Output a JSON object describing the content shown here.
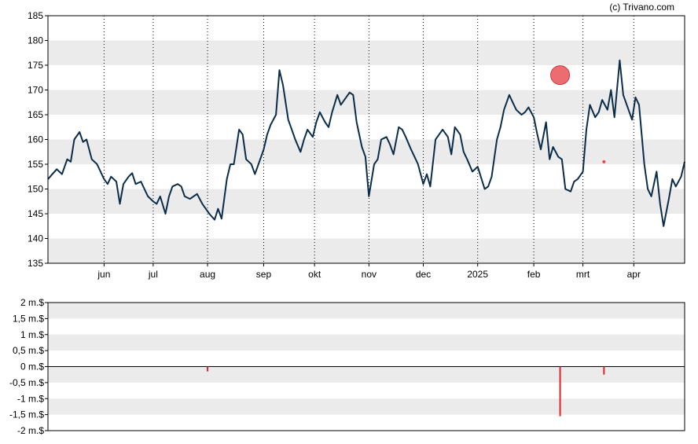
{
  "credit": "(c) Trivano.com",
  "colors": {
    "price_line": "#0b2d4a",
    "band": "#ebebeb",
    "background": "#ffffff",
    "marker": "#e8474f",
    "volume_bar": "#e0242b",
    "frame": "#000000"
  },
  "chart_data": [
    {
      "type": "line",
      "title": "",
      "y_ticks": [
        "185",
        "180",
        "175",
        "170",
        "165",
        "160",
        "155",
        "150",
        "145",
        "140",
        "135"
      ],
      "ylim": [
        135,
        185
      ],
      "x_ticks": [
        "jun",
        "jul",
        "aug",
        "sep",
        "okt",
        "nov",
        "dec",
        "2025",
        "feb",
        "mrt",
        "apr"
      ],
      "x_tick_dates": [
        "2024-06-03",
        "2024-07-01",
        "2024-08-01",
        "2024-09-02",
        "2024-10-01",
        "2024-11-01",
        "2024-12-02",
        "2025-01-02",
        "2025-02-03",
        "2025-03-03",
        "2025-04-01"
      ],
      "xlim": [
        "2024-05-02",
        "2025-04-30"
      ],
      "grid": "vertical dotted lines at month ticks, alternating horizontal bands",
      "series": [
        {
          "values": [
            [
              "2024-05-02",
              152.0
            ],
            [
              "2024-05-07",
              154.0
            ],
            [
              "2024-05-10",
              153.0
            ],
            [
              "2024-05-13",
              156.0
            ],
            [
              "2024-05-15",
              155.5
            ],
            [
              "2024-05-17",
              160.0
            ],
            [
              "2024-05-20",
              161.5
            ],
            [
              "2024-05-22",
              159.5
            ],
            [
              "2024-05-24",
              160.0
            ],
            [
              "2024-05-27",
              156.0
            ],
            [
              "2024-05-30",
              155.0
            ],
            [
              "2024-06-03",
              152.0
            ],
            [
              "2024-06-05",
              151.0
            ],
            [
              "2024-06-07",
              152.5
            ],
            [
              "2024-06-10",
              151.5
            ],
            [
              "2024-06-12",
              147.0
            ],
            [
              "2024-06-14",
              151.0
            ],
            [
              "2024-06-17",
              152.5
            ],
            [
              "2024-06-19",
              153.2
            ],
            [
              "2024-06-21",
              151.0
            ],
            [
              "2024-06-24",
              151.5
            ],
            [
              "2024-06-26",
              150.0
            ],
            [
              "2024-06-28",
              148.5
            ],
            [
              "2024-07-01",
              147.5
            ],
            [
              "2024-07-03",
              147.0
            ],
            [
              "2024-07-05",
              148.5
            ],
            [
              "2024-07-08",
              145.0
            ],
            [
              "2024-07-10",
              148.5
            ],
            [
              "2024-07-12",
              150.5
            ],
            [
              "2024-07-15",
              151.0
            ],
            [
              "2024-07-17",
              150.5
            ],
            [
              "2024-07-19",
              148.5
            ],
            [
              "2024-07-22",
              148.0
            ],
            [
              "2024-07-24",
              148.5
            ],
            [
              "2024-07-26",
              149.0
            ],
            [
              "2024-07-29",
              147.0
            ],
            [
              "2024-07-31",
              146.0
            ],
            [
              "2024-08-02",
              145.0
            ],
            [
              "2024-08-05",
              143.8
            ],
            [
              "2024-08-07",
              146.0
            ],
            [
              "2024-08-08",
              145.0
            ],
            [
              "2024-08-09",
              144.0
            ],
            [
              "2024-08-12",
              152.0
            ],
            [
              "2024-08-14",
              155.0
            ],
            [
              "2024-08-16",
              155.0
            ],
            [
              "2024-08-19",
              162.0
            ],
            [
              "2024-08-21",
              161.0
            ],
            [
              "2024-08-23",
              156.0
            ],
            [
              "2024-08-26",
              155.0
            ],
            [
              "2024-08-28",
              153.0
            ],
            [
              "2024-08-30",
              155.0
            ],
            [
              "2024-09-02",
              158.0
            ],
            [
              "2024-09-04",
              161.0
            ],
            [
              "2024-09-06",
              163.0
            ],
            [
              "2024-09-09",
              165.0
            ],
            [
              "2024-09-11",
              174.0
            ],
            [
              "2024-09-13",
              171.0
            ],
            [
              "2024-09-16",
              164.0
            ],
            [
              "2024-09-18",
              162.0
            ],
            [
              "2024-09-20",
              160.0
            ],
            [
              "2024-09-23",
              157.5
            ],
            [
              "2024-09-25",
              160.0
            ],
            [
              "2024-09-27",
              162.0
            ],
            [
              "2024-09-30",
              160.5
            ],
            [
              "2024-10-02",
              163.5
            ],
            [
              "2024-10-04",
              165.5
            ],
            [
              "2024-10-07",
              163.5
            ],
            [
              "2024-10-09",
              162.5
            ],
            [
              "2024-10-11",
              165.5
            ],
            [
              "2024-10-14",
              169.0
            ],
            [
              "2024-10-16",
              167.0
            ],
            [
              "2024-10-18",
              168.0
            ],
            [
              "2024-10-21",
              169.5
            ],
            [
              "2024-10-23",
              169.0
            ],
            [
              "2024-10-25",
              163.5
            ],
            [
              "2024-10-28",
              158.5
            ],
            [
              "2024-10-30",
              156.5
            ],
            [
              "2024-11-01",
              148.5
            ],
            [
              "2024-11-04",
              155.0
            ],
            [
              "2024-11-06",
              156.0
            ],
            [
              "2024-11-08",
              160.0
            ],
            [
              "2024-11-11",
              160.5
            ],
            [
              "2024-11-13",
              159.0
            ],
            [
              "2024-11-15",
              157.0
            ],
            [
              "2024-11-18",
              162.5
            ],
            [
              "2024-11-20",
              162.0
            ],
            [
              "2024-11-22",
              160.5
            ],
            [
              "2024-11-25",
              158.0
            ],
            [
              "2024-11-27",
              156.5
            ],
            [
              "2024-11-29",
              155.0
            ],
            [
              "2024-12-02",
              151.0
            ],
            [
              "2024-12-04",
              153.0
            ],
            [
              "2024-12-06",
              150.5
            ],
            [
              "2024-12-09",
              160.0
            ],
            [
              "2024-12-11",
              161.0
            ],
            [
              "2024-12-13",
              162.0
            ],
            [
              "2024-12-16",
              160.5
            ],
            [
              "2024-12-18",
              157.0
            ],
            [
              "2024-12-20",
              162.5
            ],
            [
              "2024-12-23",
              161.0
            ],
            [
              "2024-12-25",
              157.5
            ],
            [
              "2024-12-27",
              156.0
            ],
            [
              "2024-12-30",
              153.5
            ],
            [
              "2025-01-02",
              154.5
            ],
            [
              "2025-01-06",
              150.0
            ],
            [
              "2025-01-08",
              150.5
            ],
            [
              "2025-01-10",
              152.5
            ],
            [
              "2025-01-13",
              160.0
            ],
            [
              "2025-01-15",
              162.5
            ],
            [
              "2025-01-17",
              166.0
            ],
            [
              "2025-01-20",
              169.0
            ],
            [
              "2025-01-22",
              167.5
            ],
            [
              "2025-01-24",
              166.0
            ],
            [
              "2025-01-27",
              165.0
            ],
            [
              "2025-01-29",
              165.5
            ],
            [
              "2025-01-31",
              166.5
            ],
            [
              "2025-02-03",
              164.5
            ],
            [
              "2025-02-05",
              161.0
            ],
            [
              "2025-02-07",
              158.0
            ],
            [
              "2025-02-10",
              163.5
            ],
            [
              "2025-02-12",
              156.0
            ],
            [
              "2025-02-14",
              158.5
            ],
            [
              "2025-02-17",
              156.5
            ],
            [
              "2025-02-19",
              156.0
            ],
            [
              "2025-02-21",
              150.0
            ],
            [
              "2025-02-24",
              149.5
            ],
            [
              "2025-02-26",
              151.5
            ],
            [
              "2025-02-28",
              152.0
            ],
            [
              "2025-03-03",
              153.5
            ],
            [
              "2025-03-05",
              162.0
            ],
            [
              "2025-03-07",
              167.0
            ],
            [
              "2025-03-10",
              164.5
            ],
            [
              "2025-03-12",
              165.5
            ],
            [
              "2025-03-14",
              168.0
            ],
            [
              "2025-03-17",
              166.0
            ],
            [
              "2025-03-19",
              170.0
            ],
            [
              "2025-03-21",
              164.5
            ],
            [
              "2025-03-24",
              176.0
            ],
            [
              "2025-03-26",
              169.0
            ],
            [
              "2025-03-28",
              167.0
            ],
            [
              "2025-03-31",
              164.0
            ],
            [
              "2025-04-02",
              168.5
            ],
            [
              "2025-04-04",
              167.0
            ],
            [
              "2025-04-07",
              155.0
            ],
            [
              "2025-04-09",
              150.0
            ],
            [
              "2025-04-11",
              148.5
            ],
            [
              "2025-04-14",
              153.5
            ],
            [
              "2025-04-16",
              147.0
            ],
            [
              "2025-04-18",
              142.5
            ],
            [
              "2025-04-21",
              148.0
            ],
            [
              "2025-04-23",
              152.0
            ],
            [
              "2025-04-25",
              150.5
            ],
            [
              "2025-04-28",
              152.5
            ],
            [
              "2025-04-30",
              155.5
            ]
          ]
        }
      ],
      "marker": {
        "date": "2025-02-18",
        "value": 173.0
      },
      "small_marker": {
        "date": "2025-03-15",
        "value": 155.5
      }
    },
    {
      "type": "bar",
      "title": "",
      "y_ticks": [
        "2 m.$",
        "1,5 m.$",
        "1 m.$",
        "0,5 m.$",
        "0 m.$",
        "-0,5 m.$",
        "-1 m.$",
        "-1,5 m.$",
        "-2 m.$"
      ],
      "ylim": [
        -2,
        2
      ],
      "unit": "m.$",
      "xlim": [
        "2024-05-02",
        "2025-04-30"
      ],
      "grid": "alternating horizontal bands",
      "values": [
        [
          "2024-08-01",
          -0.15
        ],
        [
          "2025-02-18",
          -1.55
        ],
        [
          "2025-03-15",
          -0.25
        ]
      ]
    }
  ]
}
